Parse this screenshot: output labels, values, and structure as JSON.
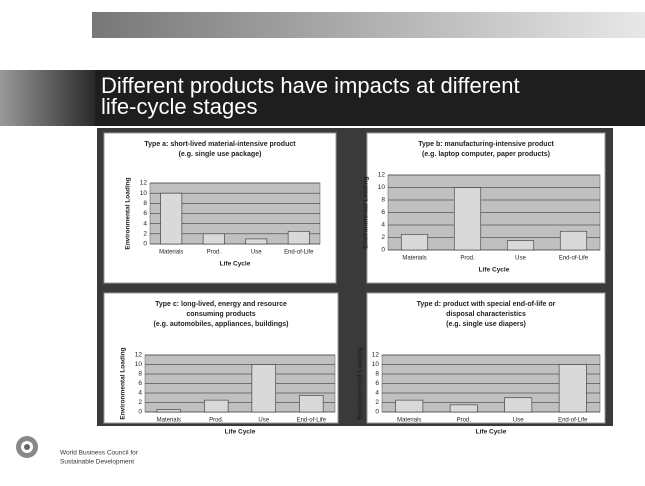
{
  "header": {
    "title": [
      "Different products have impacts at different",
      "life-cycle stages"
    ]
  },
  "footer": {
    "organization": [
      "World Business Council for",
      "Sustainable Development"
    ]
  },
  "chart_data": [
    {
      "type": "bar",
      "title": [
        "Type a: short-lived material-intensive product",
        "(e.g. single use package)"
      ],
      "categories": [
        "Materials",
        "Prod.",
        "Use",
        "End-of-Life"
      ],
      "values": [
        10,
        2,
        1,
        2.5
      ],
      "xlabel": "Life Cycle",
      "ylabel": "Environmental Loading",
      "ylim": [
        0,
        12
      ],
      "yticks": [
        0,
        2,
        4,
        6,
        8,
        10,
        12
      ],
      "grid": true,
      "color": "#d9d9d9"
    },
    {
      "type": "bar",
      "title": [
        "Type b: manufacturing-intensive product",
        "(e.g. laptop computer, paper products)"
      ],
      "categories": [
        "Materials",
        "Prod.",
        "Use",
        "End-of-Life"
      ],
      "values": [
        2.5,
        10,
        1.5,
        3
      ],
      "xlabel": "Life Cycle",
      "ylabel": "Environmental Loading",
      "ylim": [
        0,
        12
      ],
      "yticks": [
        0,
        2,
        4,
        6,
        8,
        10,
        12
      ],
      "grid": true,
      "color": "#d9d9d9"
    },
    {
      "type": "bar",
      "title": [
        "Type c: long-lived, energy and resource",
        "consuming products",
        "(e.g. automobiles, appliances, buildings)"
      ],
      "categories": [
        "Materials",
        "Prod.",
        "Use",
        "End-of-Life"
      ],
      "values": [
        0.5,
        2.5,
        10,
        3.5
      ],
      "xlabel": "Life Cycle",
      "ylabel": "Environmental Loading",
      "ylim": [
        0,
        12
      ],
      "yticks": [
        0,
        2,
        4,
        6,
        8,
        10,
        12
      ],
      "grid": true,
      "color": "#d9d9d9"
    },
    {
      "type": "bar",
      "title": [
        "Type d: product with special end-of-life or",
        "disposal characteristics",
        "(e.g. single use diapers)"
      ],
      "categories": [
        "Materials",
        "Prod.",
        "Use",
        "End-of-Life"
      ],
      "values": [
        2.5,
        1.5,
        3,
        10
      ],
      "xlabel": "Life Cycle",
      "ylabel": "Environmental Loading",
      "ylim": [
        0,
        12
      ],
      "yticks": [
        0,
        2,
        4,
        6,
        8,
        10,
        12
      ],
      "grid": true,
      "color": "#d9d9d9"
    }
  ]
}
